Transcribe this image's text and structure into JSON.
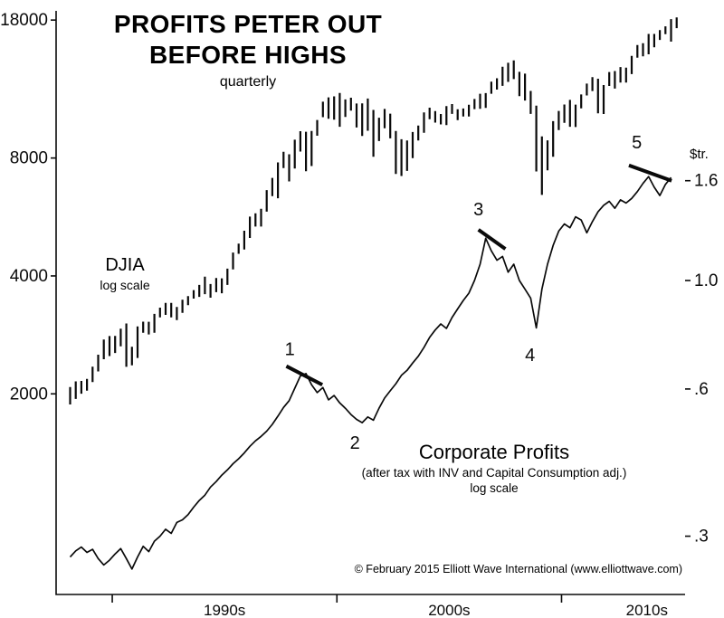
{
  "header": {
    "title_line1": "PROFITS PETER OUT",
    "title_line2": "BEFORE HIGHS",
    "subtitle": "quarterly"
  },
  "left_series_label": {
    "name": "DJIA",
    "scale_note": "log scale"
  },
  "right_series_label": {
    "name": "Corporate Profits",
    "detail": "(after tax with INV and Capital Consumption adj.)",
    "scale_note": "log scale"
  },
  "right_axis_unit": "$tr.",
  "footnote": "© February 2015 Elliott Wave International (www.elliottwave.com)",
  "chart_data": {
    "type": "line",
    "title": "PROFITS PETER OUT BEFORE HIGHS",
    "subtitle": "quarterly",
    "legend_position": "none",
    "grid": false,
    "x_axis": {
      "min_year": 1987.5,
      "max_year": 2015.5,
      "tick_years": [
        1990,
        2000,
        2010
      ],
      "decade_labels": [
        {
          "label": "1990s",
          "year": 1995
        },
        {
          "label": "2000s",
          "year": 2005
        },
        {
          "label": "2010s",
          "year": 2013.8
        }
      ]
    },
    "left_axis": {
      "label": "DJIA",
      "scale": "log",
      "min": 615,
      "max": 19000,
      "ticks": [
        18000,
        8000,
        4000,
        2000
      ],
      "tick_labels": [
        "18000",
        "8000",
        "4000",
        "2000"
      ]
    },
    "right_axis": {
      "label": "Corporate Profits ($tr.)",
      "scale": "log",
      "min": 0.228,
      "max": 3.56,
      "ticks": [
        1.6,
        1.0,
        0.6,
        0.3
      ],
      "tick_labels": [
        "1.6",
        "1.0",
        ".6",
        ".3"
      ]
    },
    "series": [
      {
        "name": "DJIA",
        "type": "high-low-bars",
        "axis": "left",
        "period": "quarterly",
        "start_year": 1988,
        "bars": [
          [
            1879,
            2081
          ],
          [
            1941,
            2152
          ],
          [
            2002,
            2158
          ],
          [
            2038,
            2183
          ],
          [
            2144,
            2347
          ],
          [
            2282,
            2518
          ],
          [
            2452,
            2752
          ],
          [
            2497,
            2809
          ],
          [
            2543,
            2810
          ],
          [
            2645,
            2935
          ],
          [
            2345,
            3025
          ],
          [
            2365,
            2637
          ],
          [
            2470,
            2973
          ],
          [
            2865,
            3057
          ],
          [
            2836,
            3055
          ],
          [
            2863,
            3201
          ],
          [
            3136,
            3320
          ],
          [
            3181,
            3413
          ],
          [
            3136,
            3413
          ],
          [
            3087,
            3333
          ],
          [
            3219,
            3478
          ],
          [
            3370,
            3554
          ],
          [
            3501,
            3681
          ],
          [
            3537,
            3794
          ],
          [
            3593,
            3985
          ],
          [
            3520,
            3814
          ],
          [
            3636,
            3953
          ],
          [
            3612,
            3945
          ],
          [
            3794,
            4175
          ],
          [
            4157,
            4589
          ],
          [
            4556,
            4839
          ],
          [
            4672,
            5216
          ],
          [
            5000,
            5670
          ],
          [
            5346,
            5778
          ],
          [
            5346,
            5933
          ],
          [
            5838,
            6623
          ],
          [
            6392,
            7117
          ],
          [
            6315,
            7796
          ],
          [
            7538,
            8299
          ],
          [
            6971,
            8178
          ],
          [
            7523,
            8907
          ],
          [
            8308,
            9367
          ],
          [
            7400,
            9338
          ],
          [
            7632,
            9374
          ],
          [
            9120,
            10006
          ],
          [
            10173,
            11139
          ],
          [
            10080,
            11428
          ],
          [
            10019,
            11497
          ],
          [
            9611,
            11723
          ],
          [
            10188,
            11287
          ],
          [
            10567,
            11401
          ],
          [
            9571,
            11022
          ],
          [
            9106,
            11035
          ],
          [
            9389,
            11350
          ],
          [
            8062,
            10610
          ],
          [
            8836,
            10136
          ],
          [
            9529,
            10673
          ],
          [
            8982,
            10381
          ],
          [
            7286,
            9379
          ],
          [
            7197,
            8931
          ],
          [
            7416,
            8869
          ],
          [
            7992,
            9323
          ],
          [
            8871,
            9686
          ],
          [
            9275,
            10453
          ],
          [
            10048,
            10753
          ],
          [
            9852,
            10537
          ],
          [
            9749,
            10363
          ],
          [
            9708,
            10854
          ],
          [
            10368,
            10984
          ],
          [
            10000,
            10656
          ],
          [
            10216,
            10705
          ],
          [
            10215,
            10940
          ],
          [
            10661,
            11317
          ],
          [
            10683,
            11670
          ],
          [
            10739,
            11718
          ],
          [
            11670,
            12529
          ],
          [
            11962,
            12786
          ],
          [
            12226,
            13676
          ],
          [
            12518,
            14000
          ],
          [
            12724,
            14198
          ],
          [
            11508,
            13279
          ],
          [
            11215,
            13136
          ],
          [
            10365,
            11867
          ],
          [
            7392,
            10882
          ],
          [
            6440,
            9088
          ],
          [
            7442,
            8877
          ],
          [
            8057,
            9937
          ],
          [
            9430,
            10549
          ],
          [
            9835,
            10955
          ],
          [
            9614,
            11258
          ],
          [
            9596,
            10948
          ],
          [
            10711,
            11625
          ],
          [
            11555,
            12391
          ],
          [
            11862,
            12876
          ],
          [
            10404,
            12753
          ],
          [
            10362,
            12284
          ],
          [
            12221,
            13264
          ],
          [
            12035,
            13338
          ],
          [
            12471,
            13653
          ],
          [
            12471,
            13610
          ],
          [
            13104,
            14578
          ],
          [
            14434,
            15542
          ],
          [
            14551,
            15709
          ],
          [
            14719,
            16588
          ],
          [
            15340,
            16588
          ],
          [
            16015,
            16978
          ],
          [
            16563,
            17350
          ],
          [
            15855,
            18103
          ],
          [
            17164,
            18289
          ]
        ]
      },
      {
        "name": "Corporate Profits",
        "type": "line",
        "axis": "right",
        "period": "quarterly",
        "start_year": 1988,
        "values": [
          0.272,
          0.28,
          0.285,
          0.278,
          0.282,
          0.27,
          0.262,
          0.268,
          0.276,
          0.283,
          0.27,
          0.257,
          0.272,
          0.286,
          0.279,
          0.293,
          0.3,
          0.31,
          0.304,
          0.32,
          0.324,
          0.332,
          0.344,
          0.355,
          0.364,
          0.378,
          0.388,
          0.4,
          0.41,
          0.422,
          0.432,
          0.444,
          0.458,
          0.47,
          0.48,
          0.492,
          0.508,
          0.528,
          0.55,
          0.568,
          0.602,
          0.638,
          0.645,
          0.612,
          0.59,
          0.604,
          0.57,
          0.582,
          0.562,
          0.548,
          0.532,
          0.52,
          0.512,
          0.526,
          0.518,
          0.548,
          0.575,
          0.595,
          0.615,
          0.64,
          0.655,
          0.678,
          0.7,
          0.73,
          0.765,
          0.792,
          0.815,
          0.798,
          0.84,
          0.875,
          0.91,
          0.942,
          1.0,
          1.08,
          1.22,
          1.15,
          1.1,
          1.12,
          1.04,
          1.08,
          1.0,
          0.96,
          0.92,
          0.8,
          0.96,
          1.08,
          1.18,
          1.262,
          1.305,
          1.282,
          1.35,
          1.33,
          1.252,
          1.32,
          1.382,
          1.425,
          1.452,
          1.405,
          1.462,
          1.44,
          1.472,
          1.52,
          1.58,
          1.632,
          1.552,
          1.492,
          1.572,
          1.625
        ]
      }
    ],
    "elliott_wave_labels": [
      {
        "text": "1",
        "year": 1997.9,
        "value": 0.725
      },
      {
        "text": "2",
        "year": 2000.8,
        "value": 0.466
      },
      {
        "text": "3",
        "year": 2006.3,
        "value": 1.4
      },
      {
        "text": "4",
        "year": 2008.6,
        "value": 0.705
      },
      {
        "text": "5",
        "year": 2013.35,
        "value": 1.92
      }
    ],
    "trend_segments": [
      {
        "x1": 1997.75,
        "v1": 0.668,
        "x2": 1999.35,
        "v2": 0.612
      },
      {
        "x1": 2006.3,
        "v1": 1.27,
        "x2": 2007.5,
        "v2": 1.16
      },
      {
        "x1": 2013.0,
        "v1": 1.72,
        "x2": 2014.9,
        "v2": 1.6
      }
    ]
  }
}
